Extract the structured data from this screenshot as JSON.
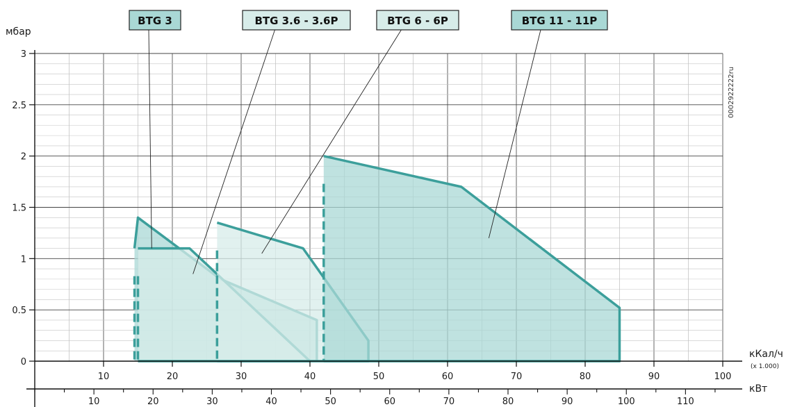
{
  "chart_data": {
    "type": "area",
    "ylabel": "мбар",
    "y_ticks": [
      "3",
      "2.5",
      "2",
      "1.5",
      "1",
      "0.5",
      "0"
    ],
    "ylim": [
      0,
      3
    ],
    "x_axis_top": {
      "unit": "кКал/ч",
      "unit_note": "(x 1.000)",
      "ticks": [
        "10",
        "20",
        "30",
        "40",
        "50",
        "60",
        "70",
        "80",
        "90",
        "100"
      ],
      "range": [
        0,
        100
      ]
    },
    "x_axis_bottom": {
      "unit": "кВт",
      "ticks": [
        "10",
        "20",
        "30",
        "40",
        "50",
        "60",
        "70",
        "80",
        "90",
        "100",
        "110"
      ],
      "range": [
        0,
        116.3
      ]
    },
    "side_code": "0002922222ru",
    "series": [
      {
        "name": "BTG 3",
        "x_unit": "кКал/ч x 1.000",
        "fill": "#a9d8d5",
        "stroke": "#3c9f9b",
        "start_x": 14.5,
        "points": [
          [
            14.5,
            0
          ],
          [
            14.5,
            1.1
          ],
          [
            15,
            1.4
          ],
          [
            27,
            0.8
          ],
          [
            41,
            0.4
          ],
          [
            41,
            0
          ]
        ],
        "label_at": [
          17,
          1.1
        ]
      },
      {
        "name": "BTG 3.6 - 3.6P",
        "x_unit": "кКал/ч x 1.000",
        "fill": "#d7ece9",
        "stroke": "#3c9f9b",
        "start_x": 15,
        "points": [
          [
            15,
            0
          ],
          [
            15,
            1.1
          ],
          [
            22.5,
            1.1
          ],
          [
            40,
            0
          ],
          [
            15,
            0
          ]
        ],
        "label_at": [
          23,
          0.85
        ]
      },
      {
        "name": "BTG 6 - 6P",
        "x_unit": "кКал/ч x 1.000",
        "fill": "#d7ece9",
        "stroke": "#3c9f9b",
        "start_x": 26.5,
        "points": [
          [
            26.5,
            0
          ],
          [
            26.5,
            1.35
          ],
          [
            39,
            1.1
          ],
          [
            48.5,
            0.2
          ],
          [
            48.5,
            0
          ],
          [
            26.5,
            0
          ]
        ],
        "label_at": [
          33,
          1.05
        ]
      },
      {
        "name": "BTG 11 - 11P",
        "x_unit": "кКал/ч x 1.000",
        "fill": "#a9d8d5",
        "stroke": "#3c9f9b",
        "start_x": 42,
        "points": [
          [
            42,
            0
          ],
          [
            42,
            2.0
          ],
          [
            62,
            1.7
          ],
          [
            85,
            0.52
          ],
          [
            85,
            0
          ],
          [
            42,
            0
          ]
        ],
        "label_at": [
          66,
          1.2
        ]
      }
    ],
    "grid": true
  }
}
